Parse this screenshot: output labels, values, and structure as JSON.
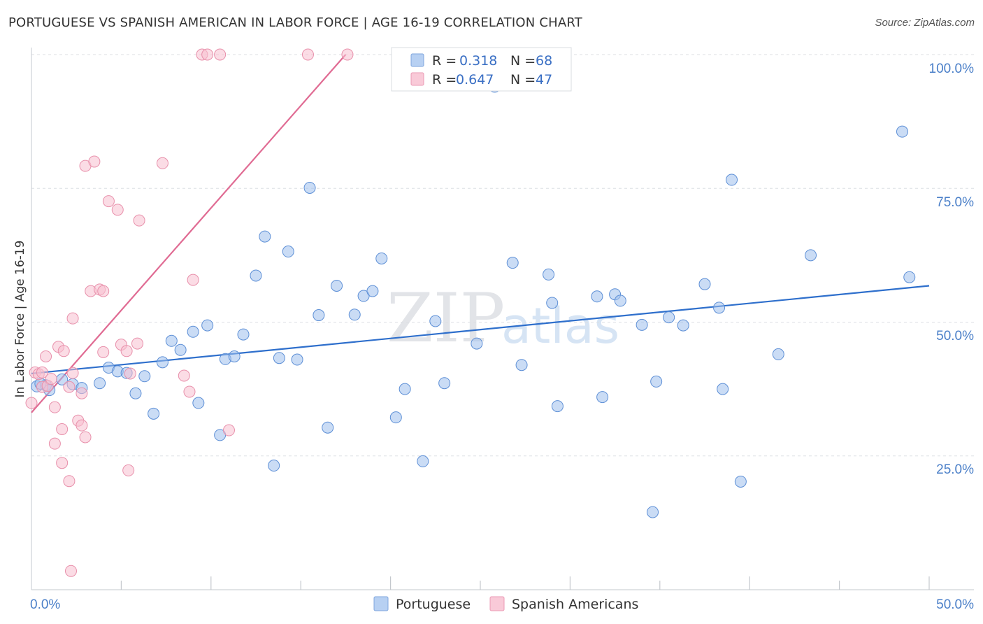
{
  "title": "PORTUGUESE VS SPANISH AMERICAN IN LABOR FORCE | AGE 16-19 CORRELATION CHART",
  "source": "Source: ZipAtlas.com",
  "watermark": {
    "zip": "ZIP",
    "atlas": "atlas"
  },
  "colors": {
    "blue": "#9ec0ec",
    "blue_stroke": "#5d8fd6",
    "blue_line": "#2e6fcc",
    "pink": "#f7bfd0",
    "pink_stroke": "#e890ab",
    "pink_line": "#e06b93",
    "tick_text": "#4a7fc8"
  },
  "legend": {
    "r_label": "R =",
    "n_label": "N =",
    "rows": [
      {
        "r": "0.318",
        "n": "68"
      },
      {
        "r": "0.647",
        "n": "47"
      }
    ]
  },
  "chart_data": {
    "type": "scatter",
    "title": "PORTUGUESE VS SPANISH AMERICAN IN LABOR FORCE | AGE 16-19 CORRELATION CHART",
    "xlabel": "",
    "ylabel": "In Labor Force | Age 16-19",
    "xlim": [
      0,
      50
    ],
    "ylim": [
      0,
      100
    ],
    "x_tick_labels": [
      "0.0%",
      "50.0%"
    ],
    "y_tick_labels": [
      "25.0%",
      "50.0%",
      "75.0%",
      "100.0%"
    ],
    "y_ticks": [
      25,
      50,
      75,
      100
    ],
    "grid": true,
    "legend_position": "top-center",
    "series": [
      {
        "name": "Portuguese",
        "color": "#9ec0ec",
        "trend": {
          "x": [
            0,
            50
          ],
          "y": [
            40.4,
            56.8
          ]
        },
        "points": [
          [
            0.3,
            38.0
          ],
          [
            0.8,
            38.2
          ],
          [
            1.0,
            37.3
          ],
          [
            1.7,
            39.3
          ],
          [
            2.3,
            38.4
          ],
          [
            2.8,
            37.7
          ],
          [
            3.8,
            38.6
          ],
          [
            4.3,
            41.5
          ],
          [
            4.8,
            40.8
          ],
          [
            5.3,
            40.5
          ],
          [
            6.3,
            39.9
          ],
          [
            5.8,
            36.7
          ],
          [
            6.8,
            32.9
          ],
          [
            7.3,
            42.5
          ],
          [
            7.8,
            46.5
          ],
          [
            8.3,
            44.8
          ],
          [
            9.0,
            48.2
          ],
          [
            9.3,
            34.9
          ],
          [
            9.8,
            49.4
          ],
          [
            10.5,
            28.9
          ],
          [
            10.8,
            43.1
          ],
          [
            11.3,
            43.6
          ],
          [
            11.8,
            47.7
          ],
          [
            12.5,
            58.7
          ],
          [
            13.0,
            66.0
          ],
          [
            13.5,
            23.2
          ],
          [
            13.8,
            43.3
          ],
          [
            14.3,
            63.2
          ],
          [
            14.8,
            43.0
          ],
          [
            15.5,
            75.1
          ],
          [
            16.0,
            51.3
          ],
          [
            16.5,
            30.3
          ],
          [
            17.0,
            56.8
          ],
          [
            18.0,
            51.4
          ],
          [
            18.5,
            54.9
          ],
          [
            19.0,
            55.8
          ],
          [
            19.5,
            61.9
          ],
          [
            20.3,
            32.2
          ],
          [
            20.8,
            37.5
          ],
          [
            21.8,
            24.0
          ],
          [
            22.5,
            50.2
          ],
          [
            23.0,
            38.6
          ],
          [
            24.8,
            46.0
          ],
          [
            25.8,
            94.0
          ],
          [
            26.8,
            61.1
          ],
          [
            27.3,
            42.0
          ],
          [
            28.8,
            58.9
          ],
          [
            29.0,
            53.6
          ],
          [
            29.3,
            34.3
          ],
          [
            31.5,
            54.8
          ],
          [
            31.8,
            36.0
          ],
          [
            32.5,
            55.2
          ],
          [
            32.8,
            54.0
          ],
          [
            34.0,
            49.5
          ],
          [
            34.6,
            14.5
          ],
          [
            34.8,
            38.9
          ],
          [
            35.5,
            50.9
          ],
          [
            36.3,
            49.4
          ],
          [
            37.5,
            57.1
          ],
          [
            38.3,
            52.7
          ],
          [
            38.5,
            37.5
          ],
          [
            39.0,
            76.6
          ],
          [
            39.5,
            20.2
          ],
          [
            41.6,
            44.0
          ],
          [
            43.4,
            62.5
          ],
          [
            48.5,
            85.6
          ],
          [
            48.9,
            58.4
          ],
          [
            0.5,
            38.5
          ]
        ]
      },
      {
        "name": "Spanish Americans",
        "color": "#f7bfd0",
        "trend": {
          "x": [
            0,
            17.5
          ],
          "y": [
            33.1,
            100.0
          ]
        },
        "points": [
          [
            0.0,
            34.9
          ],
          [
            0.2,
            40.6
          ],
          [
            0.4,
            40.3
          ],
          [
            0.6,
            40.6
          ],
          [
            0.6,
            37.9
          ],
          [
            0.8,
            43.6
          ],
          [
            0.9,
            38.1
          ],
          [
            1.1,
            39.4
          ],
          [
            1.3,
            27.3
          ],
          [
            1.3,
            34.1
          ],
          [
            1.5,
            45.4
          ],
          [
            1.7,
            30.0
          ],
          [
            1.7,
            23.7
          ],
          [
            1.8,
            44.6
          ],
          [
            2.1,
            20.3
          ],
          [
            2.1,
            37.9
          ],
          [
            2.3,
            40.5
          ],
          [
            2.3,
            50.7
          ],
          [
            2.6,
            31.6
          ],
          [
            2.8,
            36.7
          ],
          [
            2.8,
            30.7
          ],
          [
            3.0,
            28.5
          ],
          [
            3.0,
            79.2
          ],
          [
            3.3,
            55.8
          ],
          [
            3.5,
            80.0
          ],
          [
            3.8,
            56.1
          ],
          [
            4.0,
            55.8
          ],
          [
            4.0,
            44.4
          ],
          [
            4.3,
            72.6
          ],
          [
            4.8,
            71.0
          ],
          [
            5.0,
            45.8
          ],
          [
            5.3,
            44.6
          ],
          [
            5.4,
            22.3
          ],
          [
            5.5,
            40.4
          ],
          [
            5.9,
            46.0
          ],
          [
            6.0,
            69.0
          ],
          [
            7.3,
            79.7
          ],
          [
            8.5,
            40.0
          ],
          [
            8.8,
            37.0
          ],
          [
            9.0,
            57.9
          ],
          [
            9.5,
            100.0
          ],
          [
            9.8,
            100.0
          ],
          [
            10.5,
            100.0
          ],
          [
            11.0,
            29.8
          ],
          [
            15.4,
            100.0
          ],
          [
            17.6,
            100.0
          ],
          [
            2.2,
            3.5
          ]
        ]
      }
    ]
  }
}
